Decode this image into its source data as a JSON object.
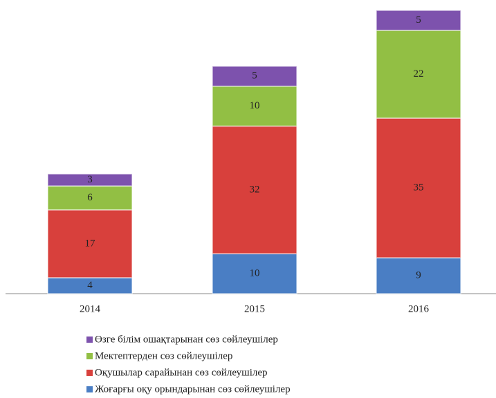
{
  "chart_data": {
    "type": "stacked_bar",
    "categories": [
      "2014",
      "2015",
      "2016"
    ],
    "series": [
      {
        "name": "Жоғарғы оқу орындарынан сөз сөйлеушілер",
        "color": "#4a7ec4",
        "values": [
          4,
          10,
          9
        ]
      },
      {
        "name": "Оқушылар сарайынан сөз сөйлеушілер",
        "color": "#d8403c",
        "values": [
          17,
          32,
          35
        ]
      },
      {
        "name": "Мектептерден  сөз сөйлеушілер",
        "color": "#92bf44",
        "values": [
          6,
          10,
          22
        ]
      },
      {
        "name": "Өзге білім ошақтарынан сөз сөйлеушілер",
        "color": "#7d52ad",
        "values": [
          3,
          5,
          5
        ]
      }
    ],
    "legend": "bottom"
  }
}
